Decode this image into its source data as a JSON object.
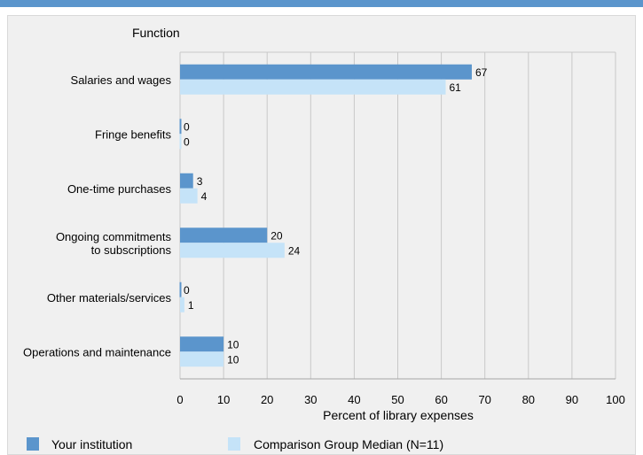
{
  "chart_data": {
    "type": "bar",
    "orientation": "horizontal",
    "title": "",
    "ylabel": "Function",
    "xlabel": "Percent of library expenses",
    "xlim": [
      0,
      100
    ],
    "xticks": [
      0,
      10,
      20,
      30,
      40,
      50,
      60,
      70,
      80,
      90,
      100
    ],
    "grid": true,
    "legend_position": "bottom",
    "categories": [
      [
        "Salaries and wages"
      ],
      [
        "Fringe benefits"
      ],
      [
        "One-time purchases"
      ],
      [
        "Ongoing commitments",
        "to subscriptions"
      ],
      [
        "Other materials/services"
      ],
      [
        "Operations and maintenance"
      ]
    ],
    "series": [
      {
        "name": "Your institution",
        "color": "#5b95cc",
        "values": [
          67,
          0,
          3,
          20,
          0,
          10
        ]
      },
      {
        "name": "Comparison Group Median (N=11)",
        "color": "#c5e3f8",
        "values": [
          61,
          0,
          4,
          24,
          1,
          10
        ]
      }
    ]
  },
  "colors": {
    "accent_bar": "#5b95cc",
    "panel_bg": "#f0f0f0",
    "grid": "#c8c8c8"
  }
}
